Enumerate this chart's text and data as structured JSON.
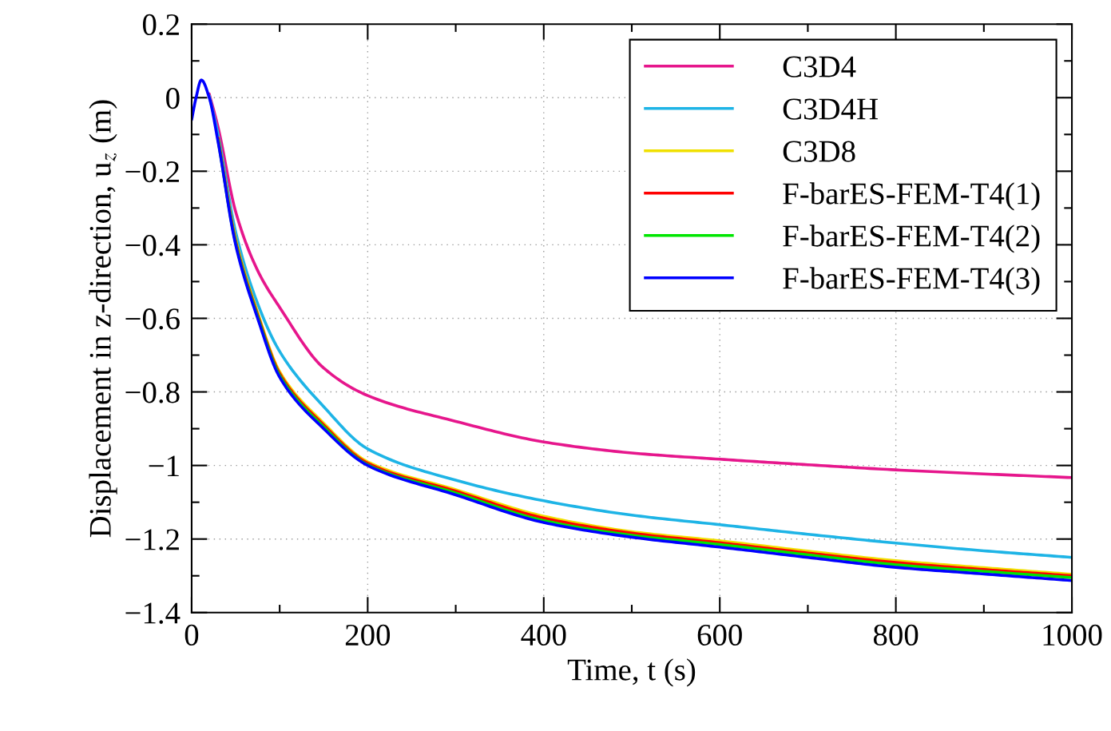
{
  "chart_data": {
    "type": "line",
    "xlabel": "Time, t (s)",
    "ylabel": "Displacement in z-direction, u$_{z}$ (m)",
    "x": [
      0,
      5,
      11,
      20,
      30,
      50,
      75,
      100,
      150,
      200,
      300,
      400,
      500,
      600,
      700,
      800,
      900,
      1000
    ],
    "series": [
      {
        "name": "C3D4",
        "color": "#e6168c",
        "values": [
          null,
          null,
          null,
          0.01,
          -0.08,
          -0.31,
          -0.47,
          -0.57,
          -0.735,
          -0.81,
          -0.88,
          -0.936,
          -0.966,
          -0.983,
          -0.998,
          -1.012,
          -1.023,
          -1.033
        ]
      },
      {
        "name": "C3D4H",
        "color": "#1eb4e6",
        "values": [
          null,
          null,
          null,
          0.005,
          -0.1,
          -0.365,
          -0.56,
          -0.69,
          -0.84,
          -0.955,
          -1.04,
          -1.096,
          -1.135,
          -1.161,
          -1.187,
          -1.211,
          -1.232,
          -1.25
        ]
      },
      {
        "name": "C3D8",
        "color": "#f0e000",
        "values": [
          null,
          null,
          null,
          null,
          -0.108,
          -0.385,
          -0.585,
          -0.745,
          -0.885,
          -0.99,
          -1.066,
          -1.138,
          -1.18,
          -1.205,
          -1.233,
          -1.259,
          -1.278,
          -1.296
        ]
      },
      {
        "name": "F-barES-FEM-T4(1)",
        "color": "#ff0000",
        "values": [
          null,
          null,
          null,
          null,
          -0.11,
          -0.39,
          -0.59,
          -0.75,
          -0.89,
          -0.994,
          -1.07,
          -1.143,
          -1.184,
          -1.21,
          -1.238,
          -1.264,
          -1.283,
          -1.3
        ]
      },
      {
        "name": "F-barES-FEM-T4(2)",
        "color": "#00e600",
        "values": [
          null,
          null,
          null,
          null,
          -0.115,
          -0.395,
          -0.595,
          -0.755,
          -0.895,
          -0.998,
          -1.075,
          -1.15,
          -1.19,
          -1.215,
          -1.243,
          -1.27,
          -1.288,
          -1.305
        ]
      },
      {
        "name": "F-barES-FEM-T4(3)",
        "color": "#0000ff",
        "values": [
          -0.06,
          0.0,
          0.048,
          0.0,
          -0.12,
          -0.4,
          -0.6,
          -0.76,
          -0.9,
          -1.0,
          -1.08,
          -1.155,
          -1.195,
          -1.222,
          -1.25,
          -1.277,
          -1.295,
          -1.313
        ]
      }
    ],
    "xlim": [
      0,
      1000
    ],
    "xticks": [
      0,
      {
        "value": 100,
        "label": null
      },
      200,
      {
        "value": 300,
        "label": null
      },
      400,
      {
        "value": 500,
        "label": null
      },
      600,
      {
        "value": 700,
        "label": null
      },
      800,
      {
        "value": 900,
        "label": null
      },
      1000
    ],
    "ylim": [
      -1.4,
      0.2
    ],
    "yticks": [
      {
        "value": -1.4,
        "label": "−1.4"
      },
      {
        "value": -1.3,
        "label": null
      },
      {
        "value": -1.2,
        "label": "−1.2"
      },
      {
        "value": -1.1,
        "label": null
      },
      {
        "value": -1,
        "label": "−1"
      },
      {
        "value": -0.9,
        "label": null
      },
      {
        "value": -0.8,
        "label": "−0.8"
      },
      {
        "value": -0.7,
        "label": null
      },
      {
        "value": -0.6,
        "label": "−0.6"
      },
      {
        "value": -0.5,
        "label": null
      },
      {
        "value": -0.4,
        "label": "−0.4"
      },
      {
        "value": -0.3,
        "label": null
      },
      {
        "value": -0.2,
        "label": "−0.2"
      },
      {
        "value": -0.1,
        "label": null
      },
      {
        "value": 0,
        "label": "0"
      },
      {
        "value": 0.1,
        "label": null
      },
      {
        "value": 0.2,
        "label": "0.2"
      }
    ],
    "grid": true,
    "legend": "top right",
    "line_style": "solid",
    "marker": "none"
  }
}
